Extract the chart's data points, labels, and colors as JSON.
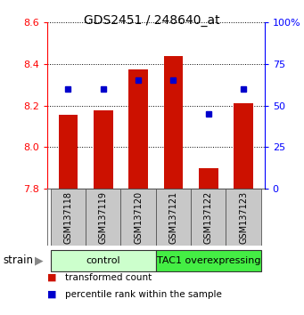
{
  "title": "GDS2451 / 248640_at",
  "samples": [
    "GSM137118",
    "GSM137119",
    "GSM137120",
    "GSM137121",
    "GSM137122",
    "GSM137123"
  ],
  "bar_values": [
    8.155,
    8.175,
    8.375,
    8.435,
    7.9,
    8.21
  ],
  "percentile_values": [
    60,
    60,
    65,
    65,
    45,
    60
  ],
  "bar_color": "#cc1100",
  "dot_color": "#0000cc",
  "ylim_left": [
    7.8,
    8.6
  ],
  "ylim_right": [
    0,
    100
  ],
  "yticks_left": [
    7.8,
    8.0,
    8.2,
    8.4,
    8.6
  ],
  "yticks_right": [
    0,
    25,
    50,
    75,
    100
  ],
  "groups": [
    {
      "label": "control",
      "color_light": "#ccffcc",
      "color_dark": "#ccffcc"
    },
    {
      "label": "TAC1 overexpressing",
      "color_light": "#44ee44",
      "color_dark": "#44ee44"
    }
  ],
  "group_label": "strain",
  "bar_width": 0.55,
  "baseline": 7.8,
  "sample_box_color": "#c8c8c8",
  "legend_items": [
    {
      "color": "#cc1100",
      "label": "transformed count"
    },
    {
      "color": "#0000cc",
      "label": "percentile rank within the sample"
    }
  ]
}
